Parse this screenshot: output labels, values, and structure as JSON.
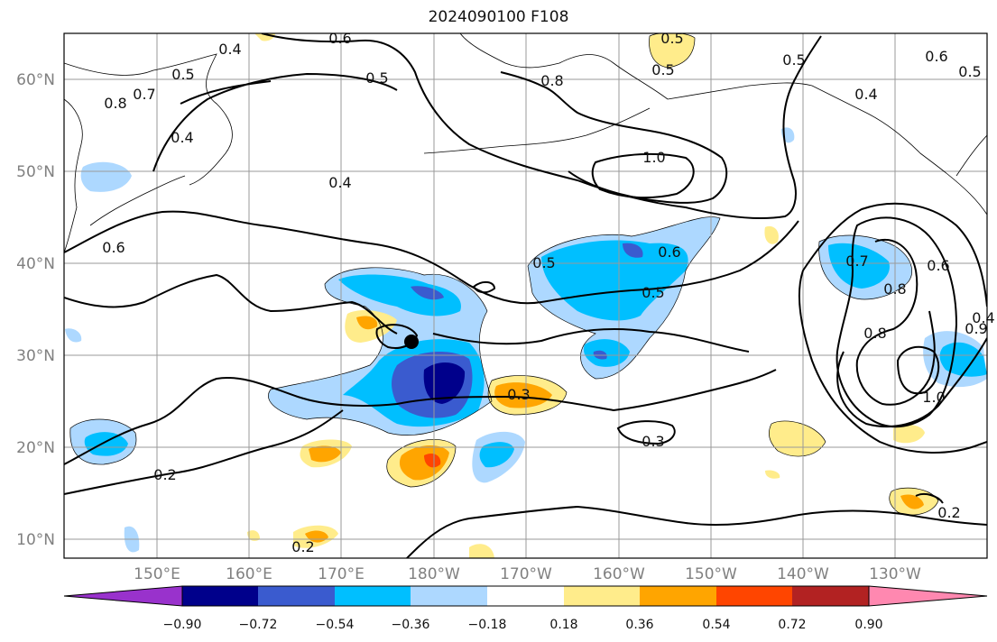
{
  "title": "2024090100 F108",
  "lat_labels": [
    "10°N",
    "20°N",
    "30°N",
    "40°N",
    "50°N",
    "60°N"
  ],
  "lon_labels": [
    "150°E",
    "160°E",
    "170°E",
    "180°W",
    "170°W",
    "160°W",
    "150°W",
    "140°W",
    "130°W"
  ],
  "colorbar": {
    "ticks": [
      "−0.90",
      "−0.72",
      "−0.54",
      "−0.36",
      "−0.18",
      "0.18",
      "0.36",
      "0.54",
      "0.72",
      "0.90"
    ],
    "colors": [
      "#9932cc",
      "#00008b",
      "#3a5bcf",
      "#00bfff",
      "#add8ff",
      "#ffffff",
      "#ffec8b",
      "#ffa500",
      "#ff4500",
      "#b22222",
      "#ff88b0"
    ]
  },
  "contour_labels": [
    "0.6",
    "0.5",
    "0.4",
    "0.5",
    "0.4",
    "0.8",
    "0.7",
    "0.5",
    "0.8",
    "0.5",
    "0.5",
    "0.6",
    "0.5",
    "0.4",
    "1.0",
    "0.4",
    "0.6",
    "0.6",
    "0.5",
    "0.5",
    "0.6",
    "0.7",
    "0.8",
    "0.8",
    "0.9",
    "1.0",
    "0.4",
    "0.3",
    "0.3",
    "0.2",
    "0.2",
    "0.2"
  ]
}
